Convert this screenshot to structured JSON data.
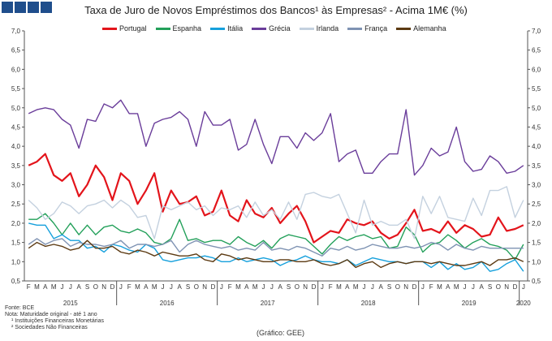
{
  "title": "Taxa de Juro de Novos Empréstimos dos Bancos¹ às Empresas² - Acima 1M€ (%)",
  "notes": {
    "source": "Fonte: BCE",
    "note": "Nota: Maturidade original - até 1 ano",
    "footnote1": "¹ Instituições Financeiras Monetárias",
    "footnote2": "² Sociedades Não Financeiras"
  },
  "credit": "(Gráfico: GEE)",
  "colors": {
    "Portugal": "#e3141b",
    "Espanha": "#23a05a",
    "Itália": "#16a0dc",
    "Grécia": "#6a3d9a",
    "Irlanda": "#c4d1df",
    "França": "#7f93b3",
    "Alemanha": "#5c3a12"
  },
  "chart_data": {
    "type": "line",
    "title": "Taxa de Juro de Novos Empréstimos dos Bancos¹ às Empresas² - Acima 1M€ (%)",
    "x_month_labels": [
      "F",
      "M",
      "A",
      "M",
      "J",
      "J",
      "A",
      "S",
      "O",
      "N",
      "D",
      "J",
      "F",
      "M",
      "A",
      "M",
      "J",
      "J",
      "A",
      "S",
      "O",
      "N",
      "D",
      "J",
      "F",
      "M",
      "A",
      "M",
      "J",
      "J",
      "A",
      "S",
      "O",
      "N",
      "D",
      "J",
      "F",
      "M",
      "A",
      "M",
      "J",
      "J",
      "A",
      "S",
      "O",
      "N",
      "D",
      "J",
      "F",
      "M",
      "A",
      "M",
      "J",
      "J",
      "A",
      "S",
      "O",
      "N",
      "D",
      "J"
    ],
    "x_year_labels": [
      "2015",
      "2016",
      "2017",
      "2018",
      "2019",
      "2020"
    ],
    "x_year_start_index": [
      0,
      11,
      23,
      35,
      47,
      59
    ],
    "ylim": [
      0.5,
      7.0
    ],
    "y_ticks": [
      "0,5",
      "1,0",
      "1,5",
      "2,0",
      "2,5",
      "3,0",
      "3,5",
      "4,0",
      "4,5",
      "5,0",
      "5,5",
      "6,0",
      "6,5",
      "7,0"
    ],
    "legend_position": "top",
    "grid": false,
    "series": [
      {
        "name": "Portugal",
        "values": [
          3.5,
          3.6,
          3.8,
          3.25,
          3.1,
          3.3,
          2.7,
          3.0,
          3.5,
          3.2,
          2.6,
          3.3,
          3.1,
          2.5,
          2.85,
          3.3,
          2.3,
          2.85,
          2.5,
          2.55,
          2.7,
          2.2,
          2.3,
          2.85,
          2.2,
          2.05,
          2.6,
          2.25,
          2.15,
          2.4,
          2.0,
          2.25,
          2.45,
          2.05,
          1.5,
          1.65,
          1.8,
          1.75,
          2.1,
          2.0,
          1.95,
          2.05,
          1.75,
          1.6,
          1.7,
          2.0,
          2.35,
          1.8,
          1.85,
          1.75,
          2.05,
          1.75,
          1.95,
          1.85,
          1.65,
          1.7,
          2.15,
          1.8,
          1.85,
          1.95
        ]
      },
      {
        "name": "Espanha",
        "values": [
          2.1,
          2.1,
          2.25,
          2.0,
          1.7,
          2.0,
          1.7,
          1.95,
          1.7,
          1.9,
          1.95,
          1.8,
          1.75,
          1.85,
          1.75,
          1.5,
          1.45,
          1.6,
          2.1,
          1.55,
          1.6,
          1.5,
          1.55,
          1.55,
          1.45,
          1.65,
          1.5,
          1.4,
          1.55,
          1.35,
          1.6,
          1.7,
          1.65,
          1.6,
          1.4,
          1.2,
          1.45,
          1.65,
          1.55,
          1.65,
          1.7,
          1.6,
          1.65,
          1.35,
          1.4,
          1.9,
          1.7,
          1.25,
          1.45,
          1.5,
          1.7,
          1.55,
          1.35,
          1.5,
          1.6,
          1.45,
          1.4,
          1.3,
          1.05,
          1.45
        ]
      },
      {
        "name": "Itália",
        "values": [
          2.0,
          1.95,
          1.95,
          1.6,
          1.7,
          1.55,
          1.55,
          1.35,
          1.4,
          1.25,
          1.45,
          1.4,
          1.3,
          1.25,
          1.45,
          1.35,
          1.05,
          1.0,
          1.05,
          1.1,
          1.1,
          1.15,
          1.1,
          1.0,
          1.0,
          1.1,
          1.0,
          1.05,
          1.1,
          1.05,
          0.9,
          1.0,
          1.05,
          1.15,
          1.05,
          1.0,
          1.0,
          0.95,
          1.05,
          0.9,
          1.0,
          1.1,
          1.05,
          1.0,
          1.0,
          0.95,
          1.0,
          1.0,
          0.85,
          1.0,
          0.8,
          0.95,
          0.8,
          0.85,
          1.0,
          0.75,
          0.8,
          0.95,
          1.05,
          0.75
        ]
      },
      {
        "name": "Grécia",
        "values": [
          4.85,
          4.95,
          5.0,
          4.95,
          4.7,
          4.55,
          3.95,
          4.7,
          4.65,
          5.1,
          5.0,
          5.2,
          4.85,
          4.85,
          4.0,
          4.6,
          4.7,
          4.75,
          4.9,
          4.7,
          4.0,
          4.9,
          4.55,
          4.55,
          4.7,
          3.9,
          4.05,
          4.7,
          4.05,
          3.55,
          4.25,
          4.25,
          3.95,
          4.35,
          4.15,
          4.35,
          4.85,
          3.6,
          3.8,
          3.9,
          3.3,
          3.3,
          3.6,
          3.8,
          3.8,
          4.95,
          3.25,
          3.5,
          3.95,
          3.75,
          3.85,
          4.5,
          3.6,
          3.35,
          3.4,
          3.75,
          3.6,
          3.3,
          3.35,
          3.5
        ]
      },
      {
        "name": "Irlanda",
        "values": [
          2.6,
          2.4,
          2.1,
          2.25,
          2.55,
          2.45,
          2.25,
          2.45,
          2.5,
          2.6,
          2.4,
          2.6,
          2.45,
          2.15,
          2.2,
          1.6,
          2.45,
          2.35,
          2.45,
          2.55,
          2.35,
          2.45,
          2.2,
          2.4,
          2.35,
          2.45,
          2.15,
          2.55,
          2.2,
          2.35,
          2.1,
          2.55,
          2.1,
          2.75,
          2.8,
          2.7,
          2.65,
          2.75,
          2.25,
          1.75,
          2.6,
          1.95,
          2.05,
          1.95,
          1.95,
          2.1,
          1.6,
          2.7,
          2.25,
          2.7,
          2.15,
          2.1,
          2.05,
          2.65,
          2.2,
          2.85,
          2.85,
          2.95,
          2.15,
          2.6
        ]
      },
      {
        "name": "França",
        "values": [
          1.45,
          1.6,
          1.45,
          1.55,
          1.6,
          1.4,
          1.5,
          1.45,
          1.45,
          1.4,
          1.45,
          1.55,
          1.35,
          1.45,
          1.45,
          1.4,
          1.45,
          1.55,
          1.25,
          1.45,
          1.55,
          1.45,
          1.4,
          1.35,
          1.4,
          1.3,
          1.35,
          1.3,
          1.5,
          1.3,
          1.35,
          1.3,
          1.4,
          1.35,
          1.25,
          1.15,
          1.35,
          1.3,
          1.4,
          1.3,
          1.35,
          1.45,
          1.4,
          1.35,
          1.35,
          1.4,
          1.35,
          1.4,
          1.5,
          1.45,
          1.3,
          1.45,
          1.35,
          1.3,
          1.4,
          1.35,
          1.35,
          1.35,
          1.35,
          1.35
        ]
      },
      {
        "name": "Alemanha",
        "values": [
          1.35,
          1.5,
          1.4,
          1.45,
          1.4,
          1.3,
          1.35,
          1.55,
          1.35,
          1.35,
          1.4,
          1.25,
          1.2,
          1.3,
          1.25,
          1.15,
          1.25,
          1.2,
          1.15,
          1.15,
          1.2,
          1.05,
          1.0,
          1.2,
          1.15,
          1.05,
          1.1,
          1.05,
          1.0,
          1.0,
          1.05,
          1.05,
          1.0,
          1.0,
          1.05,
          0.95,
          0.9,
          0.95,
          1.05,
          0.85,
          0.95,
          1.0,
          0.85,
          0.95,
          1.0,
          0.95,
          1.0,
          1.0,
          0.95,
          1.0,
          0.95,
          0.9,
          0.9,
          0.95,
          1.0,
          0.9,
          1.05,
          1.05,
          1.1,
          1.0
        ]
      }
    ]
  }
}
